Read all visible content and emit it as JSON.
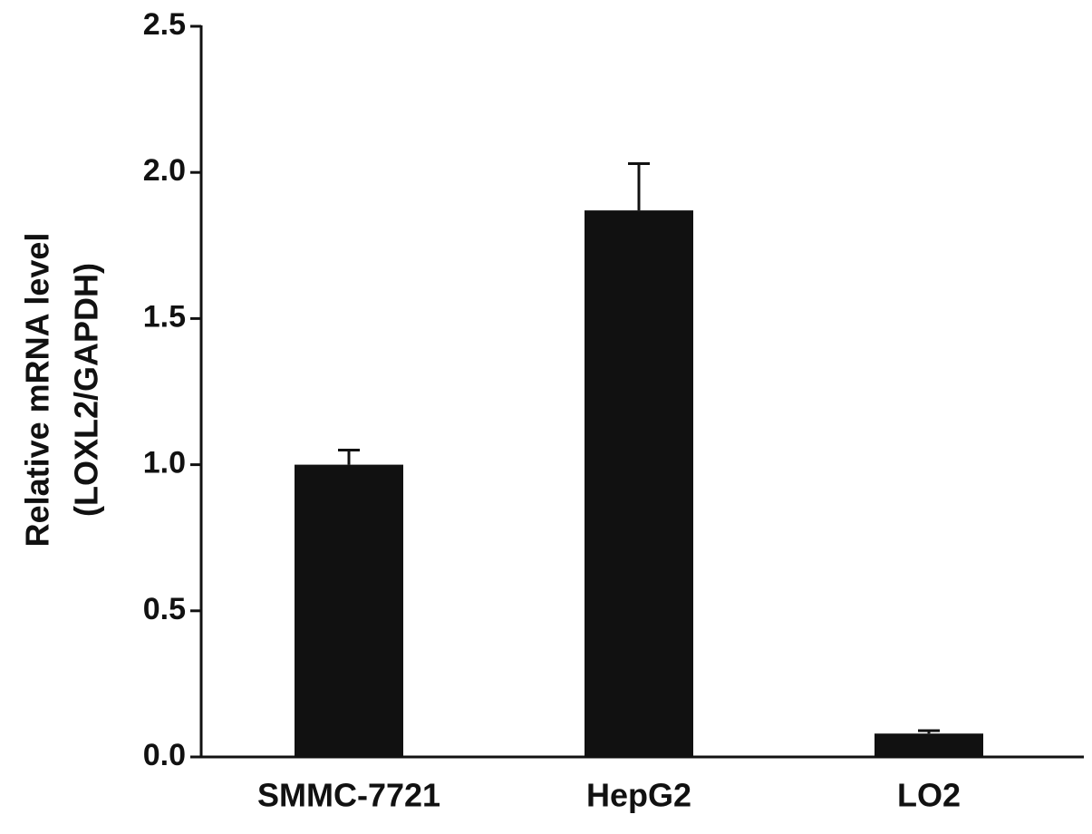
{
  "chart_data": {
    "type": "bar",
    "y_label": [
      "Relative mRNA level",
      "(LOXL2/GAPDH)"
    ],
    "categories": [
      "SMMC-7721",
      "HepG2",
      "LO2"
    ],
    "values": [
      1.0,
      1.87,
      0.08
    ],
    "errors": [
      0.05,
      0.16,
      0.01
    ],
    "color": "#111111",
    "ylim": [
      0,
      2.5
    ],
    "yticks": [
      {
        "value": 0,
        "label": "0.0"
      },
      0.5,
      {
        "value": 1,
        "label": "1.0"
      },
      1.5,
      {
        "value": 2,
        "label": "2.0"
      },
      2.5
    ]
  }
}
